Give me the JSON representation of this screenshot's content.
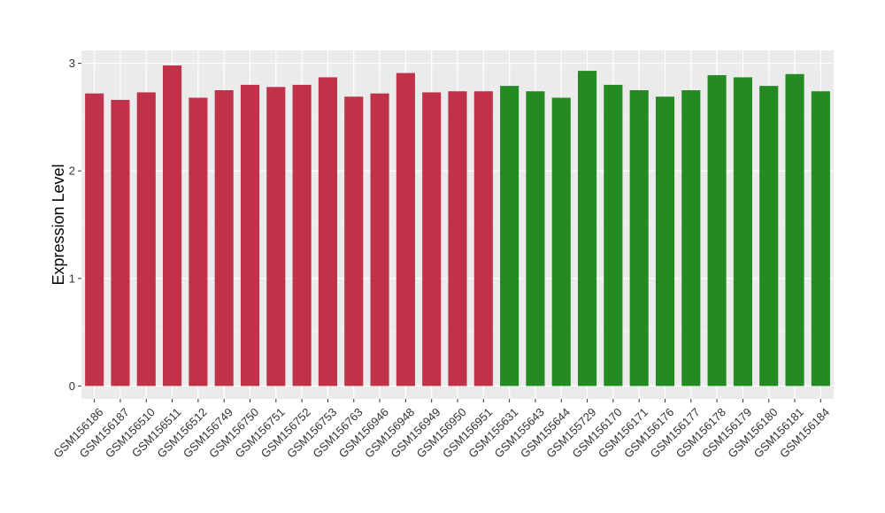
{
  "chart_data": {
    "type": "bar",
    "title": "",
    "xlabel": "",
    "ylabel": "Expression Level",
    "ylim": [
      -0.12,
      3.12
    ],
    "yticks": [
      0,
      1,
      2,
      3
    ],
    "ytick_labels": [
      "0",
      "1",
      "2",
      "3"
    ],
    "grid": true,
    "legend": "none",
    "background_color": "#ebebeb",
    "categories": [
      "GSM156186",
      "GSM156187",
      "GSM156510",
      "GSM156511",
      "GSM156512",
      "GSM156749",
      "GSM156750",
      "GSM156751",
      "GSM156752",
      "GSM156753",
      "GSM156763",
      "GSM156946",
      "GSM156948",
      "GSM156949",
      "GSM156950",
      "GSM156951",
      "GSM155631",
      "GSM155643",
      "GSM155644",
      "GSM155729",
      "GSM156170",
      "GSM156171",
      "GSM156176",
      "GSM156177",
      "GSM156178",
      "GSM156179",
      "GSM156180",
      "GSM156181",
      "GSM156184"
    ],
    "values": [
      2.72,
      2.66,
      2.73,
      2.98,
      2.68,
      2.75,
      2.8,
      2.78,
      2.8,
      2.87,
      2.69,
      2.72,
      2.91,
      2.73,
      2.74,
      2.74,
      2.79,
      2.74,
      2.68,
      2.93,
      2.8,
      2.75,
      2.69,
      2.75,
      2.89,
      2.87,
      2.79,
      2.9,
      2.74
    ],
    "colors": [
      "#c0314a",
      "#c0314a",
      "#c0314a",
      "#c0314a",
      "#c0314a",
      "#c0314a",
      "#c0314a",
      "#c0314a",
      "#c0314a",
      "#c0314a",
      "#c0314a",
      "#c0314a",
      "#c0314a",
      "#c0314a",
      "#c0314a",
      "#c0314a",
      "#238b22",
      "#238b22",
      "#238b22",
      "#238b22",
      "#238b22",
      "#238b22",
      "#238b22",
      "#238b22",
      "#238b22",
      "#238b22",
      "#238b22",
      "#238b22",
      "#238b22"
    ]
  }
}
